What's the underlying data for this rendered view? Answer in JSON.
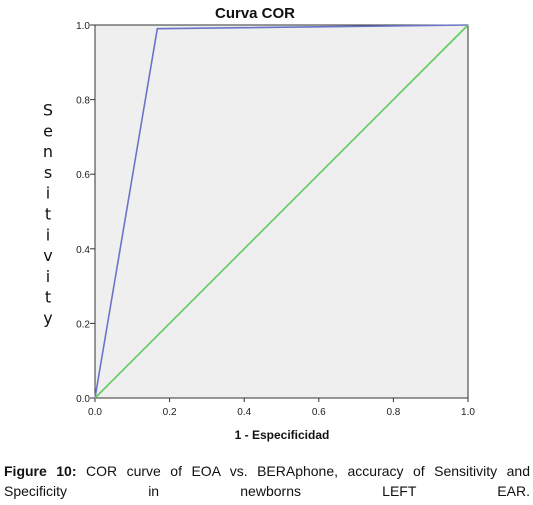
{
  "chart_data": {
    "type": "line",
    "title": "Curva COR",
    "xlabel": "1 - Especificidad",
    "ylabel": "Sensitivity",
    "xlim": [
      0,
      1
    ],
    "ylim": [
      0,
      1
    ],
    "x_ticks": [
      "0.0",
      "0.2",
      "0.4",
      "0.6",
      "0.8",
      "1.0"
    ],
    "y_ticks": [
      "0.0",
      "0.2",
      "0.4",
      "0.6",
      "0.8",
      "1.0"
    ],
    "grid": false,
    "legend": "none",
    "series": [
      {
        "color": "#6b74c9",
        "x": [
          0,
          0.167,
          1
        ],
        "y": [
          0,
          0.99,
          1
        ]
      },
      {
        "color": "#5ecb5e",
        "x": [
          0,
          1
        ],
        "y": [
          0,
          1
        ]
      }
    ],
    "plot_background": "#efefef"
  },
  "caption": {
    "label": "Figure 10:",
    "text": "COR curve of EOA vs. BERAphone, accuracy of Sensitivity and Specificity in newborns LEFT EAR."
  }
}
